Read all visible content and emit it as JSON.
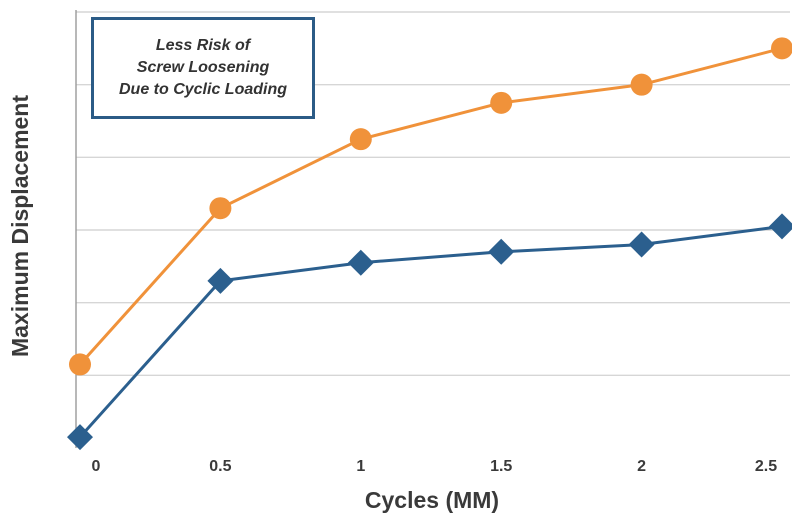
{
  "chart_data": {
    "type": "line",
    "xlabel": "Cycles (MM)",
    "ylabel": "Maximum Displacement",
    "x": [
      0,
      0.5,
      1,
      1.5,
      2,
      2.5
    ],
    "xticks": [
      "0",
      "0.5",
      "1",
      "1.5",
      "2",
      "2.5"
    ],
    "ylim": [
      0,
      6
    ],
    "grid": true,
    "series": [
      {
        "color": "#f0923a",
        "marker": "circle",
        "values": [
          1.15,
          3.3,
          4.25,
          4.75,
          5.0,
          5.5
        ]
      },
      {
        "color": "#2b5f8e",
        "marker": "diamond",
        "values": [
          0.15,
          2.3,
          2.55,
          2.7,
          2.8,
          3.05
        ]
      }
    ],
    "annotation": {
      "lines": [
        "Less Risk of",
        "Screw Loosening",
        "Due to Cyclic Loading"
      ],
      "border_color": "#2b5b86"
    }
  }
}
